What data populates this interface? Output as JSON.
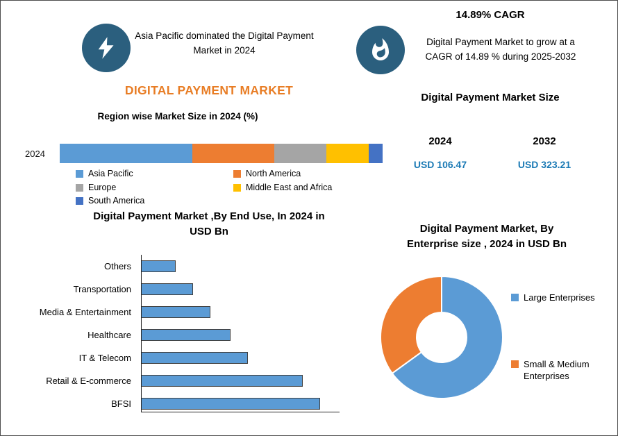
{
  "header": {
    "left_callout": "Asia Pacific dominated the Digital Payment Market in 2024",
    "cagr_title": "14.89% CAGR",
    "right_callout": "Digital Payment Market to grow at a CAGR of 14.89 % during 2025-2032"
  },
  "titles": {
    "main": "DIGITAL PAYMENT MARKET",
    "region_chart": "Region wise Market Size in 2024 (%)",
    "end_use_chart": "Digital Payment Market ,By End Use, In 2024 in USD Bn",
    "market_size": "Digital Payment Market Size",
    "enterprise_chart": "Digital Payment Market, By Enterprise size , 2024 in USD Bn"
  },
  "market_size": {
    "years": [
      "2024",
      "2032"
    ],
    "values": [
      "USD 106.47",
      "USD 323.21"
    ]
  },
  "icons": {
    "left_badge": "lightning-icon",
    "right_badge": "flame-icon"
  },
  "colors": {
    "title_orange": "#E87D25",
    "value_blue": "#1B7AB5",
    "icon_badge": "#2B5F7E",
    "bar_blue": "#5B9BD5",
    "text": "#111111"
  },
  "chart_data": [
    {
      "id": "region-share",
      "type": "bar",
      "stacked": true,
      "orientation": "horizontal",
      "title": "Region wise Market Size in 2024 (%)",
      "categories": [
        "2024"
      ],
      "series": [
        {
          "name": "Asia Pacific",
          "values": [
            41
          ],
          "color": "#5B9BD5"
        },
        {
          "name": "North America",
          "values": [
            25.5
          ],
          "color": "#ED7D31"
        },
        {
          "name": "Europe",
          "values": [
            16
          ],
          "color": "#A5A5A5"
        },
        {
          "name": "Middle East and Africa",
          "values": [
            13.3
          ],
          "color": "#FFC000"
        },
        {
          "name": "South America",
          "values": [
            4.2
          ],
          "color": "#4472C4"
        }
      ],
      "unit": "%",
      "legend_position": "bottom",
      "grid": false
    },
    {
      "id": "end-use",
      "type": "bar",
      "orientation": "horizontal",
      "title": "Digital Payment Market ,By End Use, In 2024 in USD Bn",
      "categories": [
        "Others",
        "Transportation",
        "Media & Entertainment",
        "Healthcare",
        "IT & Telecom",
        "Retail & E-commerce",
        "BFSI"
      ],
      "values": [
        6,
        9,
        12,
        15.5,
        18.5,
        28,
        31
      ],
      "unit": "USD Bn",
      "bar_color": "#5B9BD5",
      "grid": false,
      "value_labels_shown": false
    },
    {
      "id": "enterprise-size",
      "type": "pie",
      "donut": true,
      "title": "Digital Payment Market, By Enterprise size , 2024 in USD Bn",
      "labels": [
        "Large Enterprises",
        "Small & Medium Enterprises"
      ],
      "values": [
        65,
        35
      ],
      "colors": [
        "#5B9BD5",
        "#ED7D31"
      ],
      "start_angle_deg": -90,
      "legend_position": "right"
    }
  ]
}
